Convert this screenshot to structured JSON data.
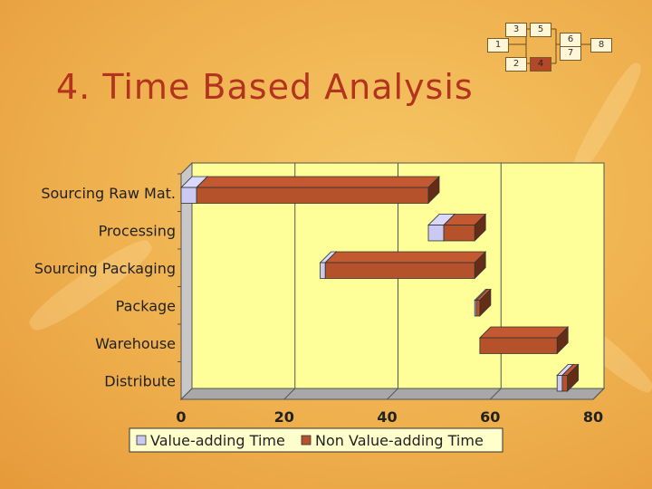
{
  "slide": {
    "title": "4. Time Based Analysis"
  },
  "flow": {
    "nodes": [
      {
        "id": "3",
        "highlight": false
      },
      {
        "id": "5",
        "highlight": false
      },
      {
        "id": "1",
        "highlight": false
      },
      {
        "id": "6",
        "highlight": false
      },
      {
        "id": "7",
        "highlight": false
      },
      {
        "id": "8",
        "highlight": false
      },
      {
        "id": "2",
        "highlight": false
      },
      {
        "id": "4",
        "highlight": true
      }
    ]
  },
  "chart_data": {
    "type": "bar",
    "orientation": "horizontal",
    "stacked": true,
    "three_d": true,
    "categories": [
      "Sourcing Raw Mat.",
      "Processing",
      "Sourcing Packaging",
      "Package",
      "Warehouse",
      "Distribute"
    ],
    "series": [
      {
        "name": "Value-adding Time",
        "color": "#c9c9f2",
        "start": [
          0,
          48,
          27,
          57,
          58,
          73
        ],
        "values": [
          3,
          3,
          1,
          0.3,
          0,
          1
        ]
      },
      {
        "name": "Non Value-adding Time",
        "color": "#b5522c",
        "start": [
          3,
          51,
          28,
          57.3,
          58,
          74
        ],
        "values": [
          45,
          6,
          29,
          0.7,
          15,
          1
        ]
      }
    ],
    "xlim": [
      0,
      80
    ],
    "xticks": [
      "0",
      "20",
      "40",
      "60",
      "80"
    ],
    "grid": true,
    "legend_position": "bottom",
    "plot_background": "#ffff99"
  }
}
